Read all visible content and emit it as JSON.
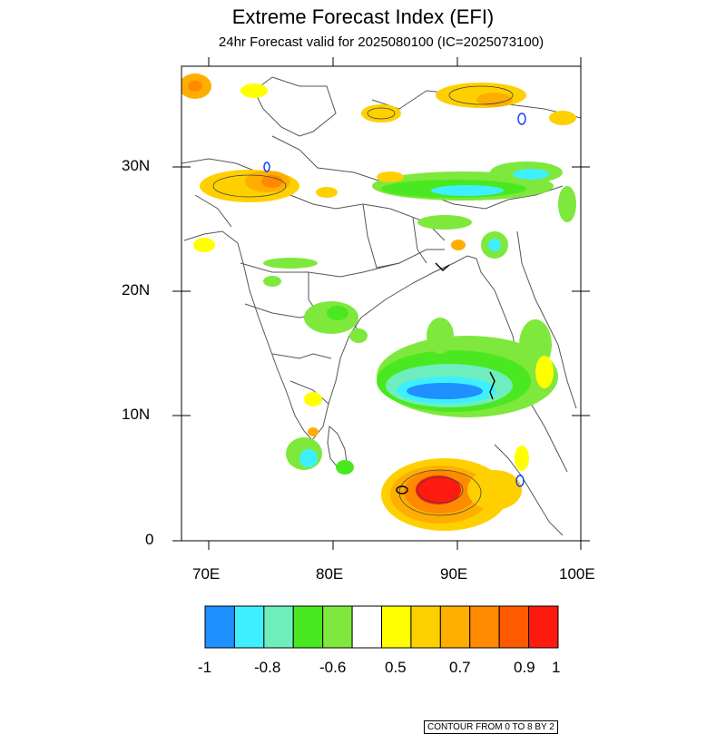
{
  "title": "Extreme Forecast Index (EFI)",
  "subtitle": "24hr Forecast valid for 2025080100 (IC=2025073100)",
  "axes": {
    "lat_labels": [
      "30N",
      "20N",
      "10N",
      "0"
    ],
    "lon_labels": [
      "70E",
      "80E",
      "90E",
      "100E"
    ]
  },
  "colorbar": {
    "colors": [
      "#1e90ff",
      "#3ef0ff",
      "#6eeebc",
      "#4ae820",
      "#7ee83c",
      "#ffffff",
      "#ffff00",
      "#ffd000",
      "#ffae00",
      "#ff8a00",
      "#ff5a00",
      "#ff1a10"
    ],
    "labels": [
      "-1",
      "-0.8",
      "-0.6",
      "0.5",
      "0.7",
      "0.9",
      "1"
    ]
  },
  "footer": "CONTOUR FROM 0 TO 8 BY 2"
}
